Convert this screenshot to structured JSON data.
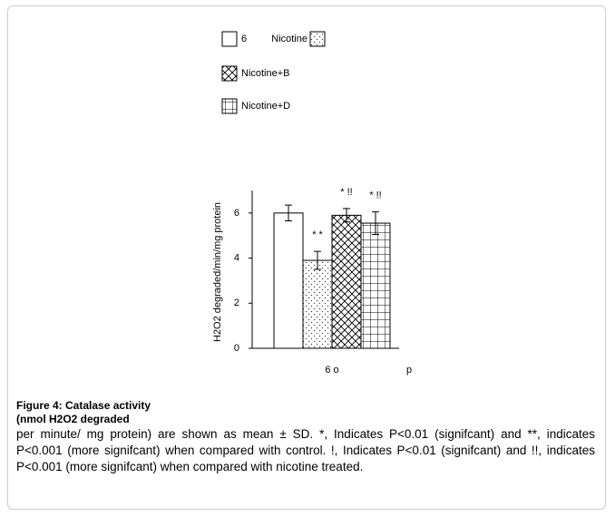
{
  "chart_data": {
    "type": "bar",
    "categories": [
      "6 o"
    ],
    "x_label": "p",
    "y_label": "H2O2 degraded/min/mg protein",
    "ylim": [
      0,
      7
    ],
    "yticks": [
      0,
      2,
      4,
      6
    ],
    "series": [
      {
        "name": "6",
        "pattern": "none",
        "values": [
          6.0
        ],
        "errors": [
          0.35
        ]
      },
      {
        "name": "Nicotine",
        "pattern": "dots",
        "values": [
          3.9
        ],
        "errors": [
          0.4
        ],
        "annotation": "* *"
      },
      {
        "name": "Nicotine+B",
        "pattern": "diagonal",
        "values": [
          5.9
        ],
        "errors": [
          0.3
        ],
        "annotation": "* !!"
      },
      {
        "name": "Nicotine+D",
        "pattern": "grid",
        "values": [
          5.55
        ],
        "errors": [
          0.5
        ],
        "annotation": "* !!"
      }
    ]
  },
  "caption": {
    "title": "Figure 4: Catalase activity",
    "subtitle": "(nmol H2O2 degraded",
    "text": "per minute/ mg protein) are shown as mean ± SD. *, Indicates P<0.01 (signifcant) and **, indicates P<0.001 (more signifcant) when compared with control. !, Indicates P<0.01 (signifcant) and !!, indicates P<0.001 (more signifcant) when compared with nicotine treated."
  }
}
